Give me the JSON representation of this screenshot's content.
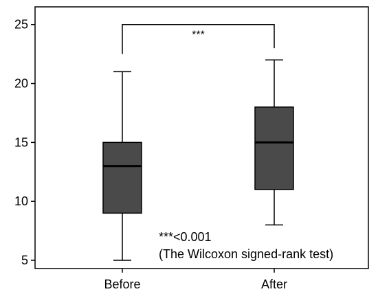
{
  "chart_data": {
    "type": "boxplot",
    "categories": [
      "Before",
      "After"
    ],
    "boxes": [
      {
        "category": "Before",
        "whisker_low": 5,
        "q1": 9,
        "median": 13,
        "q3": 15,
        "whisker_high": 21
      },
      {
        "category": "After",
        "whisker_low": 8,
        "q1": 11,
        "median": 15,
        "q3": 18,
        "whisker_high": 22
      }
    ],
    "ylim": [
      4.3,
      26.5
    ],
    "yticks": [
      5,
      10,
      15,
      20,
      25
    ],
    "box_color": "#4a4a4a",
    "significance": {
      "label": "***",
      "y": 25
    },
    "annotations": [
      "***<0.001",
      "(The Wilcoxon signed-rank test)"
    ],
    "grid": false
  }
}
